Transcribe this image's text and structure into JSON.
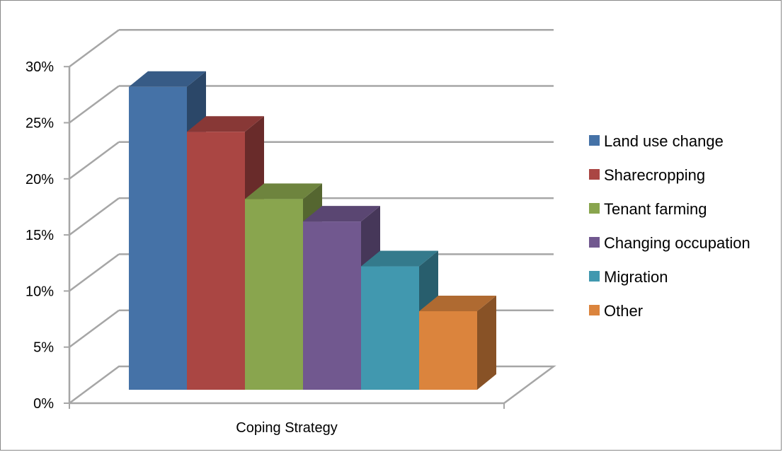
{
  "chart_data": {
    "type": "bar",
    "style": "3d-clustered-column",
    "categories": [
      "Coping Strategy"
    ],
    "xlabel": "Coping Strategy",
    "ylabel": "",
    "title": "",
    "ylim": [
      0,
      30
    ],
    "y_ticks": [
      "0%",
      "5%",
      "10%",
      "15%",
      "20%",
      "25%",
      "30%"
    ],
    "grid": true,
    "legend_position": "right",
    "series": [
      {
        "name": "Land use change",
        "values": [
          27
        ],
        "color": "#4572A7"
      },
      {
        "name": "Sharecropping",
        "values": [
          23
        ],
        "color": "#AA4643"
      },
      {
        "name": "Tenant farming",
        "values": [
          17
        ],
        "color": "#89A54E"
      },
      {
        "name": "Changing occupation",
        "values": [
          15
        ],
        "color": "#71588F"
      },
      {
        "name": "Migration",
        "values": [
          11
        ],
        "color": "#4198AF"
      },
      {
        "name": "Other",
        "values": [
          7
        ],
        "color": "#DB843D"
      }
    ]
  }
}
